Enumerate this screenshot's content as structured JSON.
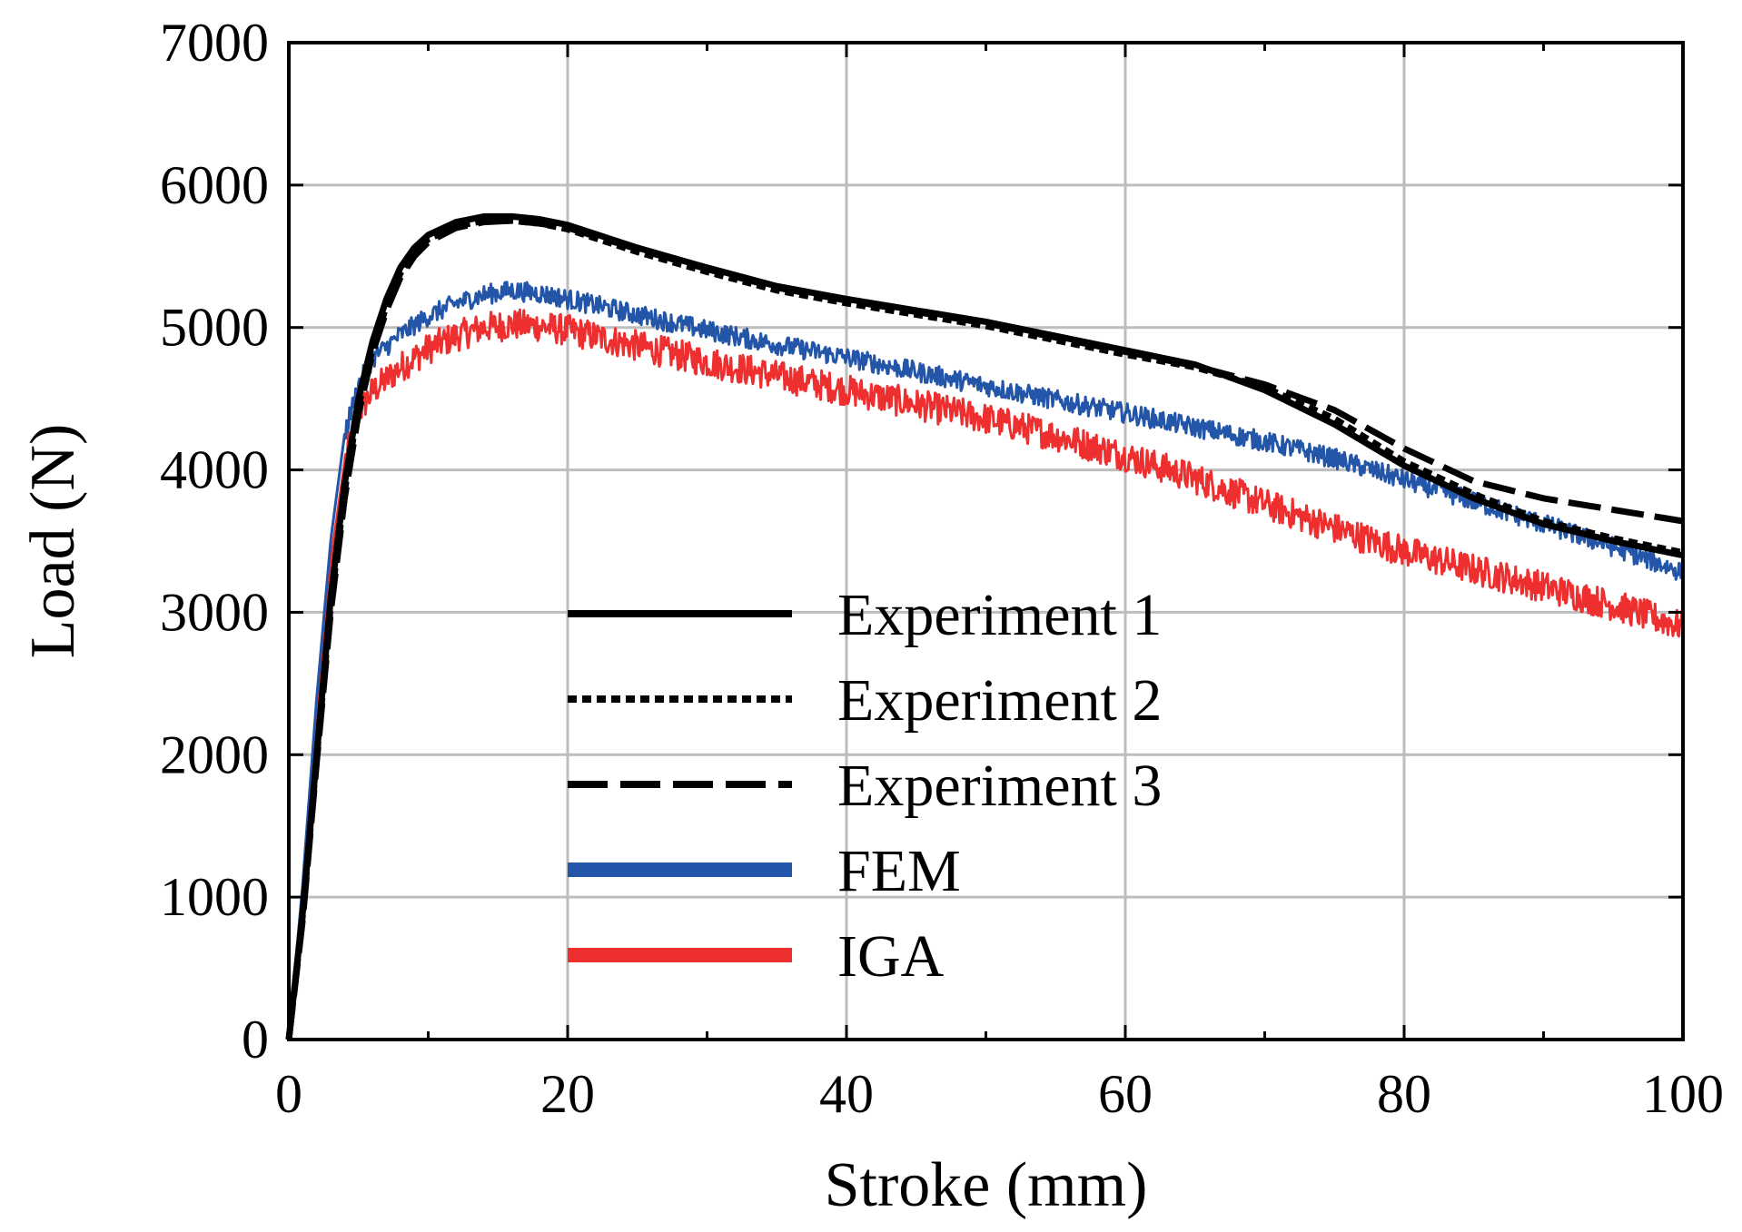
{
  "chart_data": {
    "type": "line",
    "title": "",
    "xlabel": "Stroke (mm)",
    "ylabel": "Load (N)",
    "xlim": [
      0,
      100
    ],
    "ylim": [
      0,
      7000
    ],
    "xticks": [
      "0",
      "20",
      "40",
      "60",
      "80",
      "100"
    ],
    "yticks": [
      "0",
      "1000",
      "2000",
      "3000",
      "4000",
      "5000",
      "6000",
      "7000"
    ],
    "grid": true,
    "legend_position": "bottom-center",
    "series": [
      {
        "name": "Experiment 1",
        "style": "solid",
        "color": "#000000",
        "noise": 0,
        "points": [
          [
            0,
            0
          ],
          [
            1,
            900
          ],
          [
            2,
            2000
          ],
          [
            3,
            3100
          ],
          [
            4,
            3900
          ],
          [
            5,
            4500
          ],
          [
            6,
            4900
          ],
          [
            7,
            5200
          ],
          [
            8,
            5420
          ],
          [
            9,
            5560
          ],
          [
            10,
            5650
          ],
          [
            12,
            5740
          ],
          [
            14,
            5780
          ],
          [
            16,
            5780
          ],
          [
            18,
            5760
          ],
          [
            20,
            5720
          ],
          [
            25,
            5560
          ],
          [
            30,
            5420
          ],
          [
            35,
            5290
          ],
          [
            40,
            5200
          ],
          [
            45,
            5120
          ],
          [
            50,
            5040
          ],
          [
            55,
            4940
          ],
          [
            60,
            4840
          ],
          [
            65,
            4740
          ],
          [
            70,
            4560
          ],
          [
            75,
            4320
          ],
          [
            80,
            4030
          ],
          [
            85,
            3800
          ],
          [
            90,
            3620
          ],
          [
            95,
            3500
          ],
          [
            100,
            3400
          ]
        ]
      },
      {
        "name": "Experiment 2",
        "style": "dotted",
        "color": "#000000",
        "noise": 0,
        "points": [
          [
            0,
            0
          ],
          [
            1,
            880
          ],
          [
            2,
            1980
          ],
          [
            3,
            3050
          ],
          [
            4,
            3850
          ],
          [
            5,
            4450
          ],
          [
            6,
            4850
          ],
          [
            7,
            5150
          ],
          [
            8,
            5380
          ],
          [
            9,
            5530
          ],
          [
            10,
            5620
          ],
          [
            12,
            5710
          ],
          [
            14,
            5750
          ],
          [
            16,
            5750
          ],
          [
            18,
            5730
          ],
          [
            20,
            5690
          ],
          [
            25,
            5530
          ],
          [
            30,
            5390
          ],
          [
            35,
            5260
          ],
          [
            40,
            5170
          ],
          [
            45,
            5090
          ],
          [
            50,
            5010
          ],
          [
            55,
            4910
          ],
          [
            60,
            4810
          ],
          [
            65,
            4720
          ],
          [
            70,
            4580
          ],
          [
            75,
            4360
          ],
          [
            80,
            4060
          ],
          [
            85,
            3830
          ],
          [
            90,
            3640
          ],
          [
            95,
            3520
          ],
          [
            100,
            3420
          ]
        ]
      },
      {
        "name": "Experiment 3",
        "style": "dashed",
        "color": "#000000",
        "noise": 0,
        "points": [
          [
            0,
            0
          ],
          [
            1,
            850
          ],
          [
            2,
            1950
          ],
          [
            3,
            3000
          ],
          [
            4,
            3800
          ],
          [
            5,
            4400
          ],
          [
            6,
            4820
          ],
          [
            7,
            5120
          ],
          [
            8,
            5350
          ],
          [
            9,
            5500
          ],
          [
            10,
            5600
          ],
          [
            12,
            5700
          ],
          [
            14,
            5740
          ],
          [
            16,
            5750
          ],
          [
            18,
            5730
          ],
          [
            20,
            5700
          ],
          [
            25,
            5550
          ],
          [
            30,
            5410
          ],
          [
            35,
            5280
          ],
          [
            40,
            5190
          ],
          [
            45,
            5110
          ],
          [
            50,
            5030
          ],
          [
            55,
            4930
          ],
          [
            60,
            4830
          ],
          [
            65,
            4730
          ],
          [
            70,
            4600
          ],
          [
            75,
            4420
          ],
          [
            80,
            4150
          ],
          [
            85,
            3920
          ],
          [
            90,
            3800
          ],
          [
            95,
            3720
          ],
          [
            100,
            3640
          ]
        ]
      },
      {
        "name": "FEM",
        "style": "solid",
        "color": "#2355a8",
        "noise": 70,
        "points": [
          [
            0,
            0
          ],
          [
            1,
            1100
          ],
          [
            2,
            2400
          ],
          [
            3,
            3500
          ],
          [
            4,
            4250
          ],
          [
            5,
            4600
          ],
          [
            6,
            4780
          ],
          [
            8,
            4950
          ],
          [
            10,
            5080
          ],
          [
            12,
            5170
          ],
          [
            14,
            5230
          ],
          [
            16,
            5260
          ],
          [
            18,
            5240
          ],
          [
            20,
            5200
          ],
          [
            25,
            5090
          ],
          [
            30,
            4980
          ],
          [
            35,
            4880
          ],
          [
            40,
            4790
          ],
          [
            45,
            4690
          ],
          [
            50,
            4590
          ],
          [
            55,
            4490
          ],
          [
            60,
            4400
          ],
          [
            65,
            4300
          ],
          [
            70,
            4200
          ],
          [
            75,
            4080
          ],
          [
            80,
            3930
          ],
          [
            85,
            3780
          ],
          [
            90,
            3620
          ],
          [
            95,
            3460
          ],
          [
            100,
            3280
          ]
        ]
      },
      {
        "name": "IGA",
        "style": "solid",
        "color": "#ee2f2f",
        "noise": 110,
        "points": [
          [
            0,
            0
          ],
          [
            1,
            1000
          ],
          [
            2,
            2300
          ],
          [
            3,
            3350
          ],
          [
            4,
            4050
          ],
          [
            5,
            4400
          ],
          [
            6,
            4550
          ],
          [
            8,
            4720
          ],
          [
            10,
            4850
          ],
          [
            12,
            4940
          ],
          [
            14,
            5000
          ],
          [
            16,
            5020
          ],
          [
            18,
            5010
          ],
          [
            20,
            4980
          ],
          [
            25,
            4870
          ],
          [
            30,
            4760
          ],
          [
            35,
            4660
          ],
          [
            40,
            4560
          ],
          [
            45,
            4460
          ],
          [
            50,
            4360
          ],
          [
            55,
            4240
          ],
          [
            60,
            4100
          ],
          [
            65,
            3940
          ],
          [
            70,
            3760
          ],
          [
            75,
            3590
          ],
          [
            80,
            3430
          ],
          [
            85,
            3300
          ],
          [
            90,
            3180
          ],
          [
            95,
            3050
          ],
          [
            100,
            2900
          ]
        ]
      }
    ]
  }
}
